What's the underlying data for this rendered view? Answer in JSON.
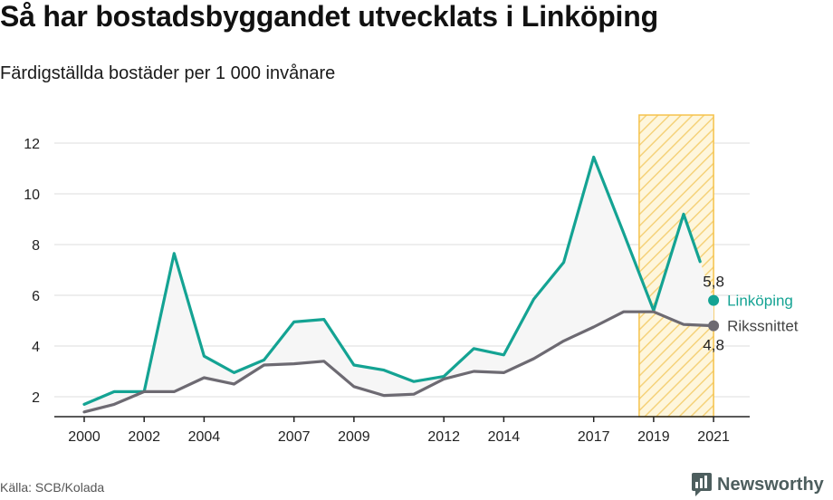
{
  "header": {
    "title": "Så har bostadsbyggandet utvecklats i Linköping",
    "subtitle": "Färdigställda bostäder per 1 000 invånare"
  },
  "footer": {
    "source": "Källa: SCB/Kolada",
    "brand": "Newsworthy"
  },
  "colors": {
    "linkoping": "#14a393",
    "riket": "#6d6a72",
    "band_fill": "#fde7b0",
    "band_stroke": "#f5c24c",
    "grid": "#dddddd",
    "area": "#f6f6f6",
    "brand": "#4d5e5e"
  },
  "chart_data": {
    "type": "line",
    "x": [
      2000,
      2001,
      2002,
      2003,
      2004,
      2005,
      2006,
      2007,
      2008,
      2009,
      2010,
      2011,
      2012,
      2013,
      2014,
      2015,
      2016,
      2017,
      2018,
      2019,
      2020,
      2021
    ],
    "series": [
      {
        "name": "Linköping",
        "values": [
          1.7,
          2.2,
          2.2,
          7.65,
          3.6,
          2.95,
          3.45,
          4.95,
          5.05,
          3.25,
          3.05,
          2.6,
          2.8,
          3.9,
          3.65,
          5.85,
          7.3,
          11.45,
          8.45,
          5.4,
          9.2,
          5.8
        ]
      },
      {
        "name": "Rikssnittet",
        "values": [
          1.4,
          1.7,
          2.2,
          2.2,
          2.75,
          2.5,
          3.25,
          3.3,
          3.4,
          2.4,
          2.05,
          2.1,
          2.7,
          3.0,
          2.95,
          3.5,
          4.2,
          4.75,
          5.35,
          5.35,
          4.85,
          4.8
        ]
      }
    ],
    "end_labels": [
      "5,8",
      "4,8"
    ],
    "highlight_range": [
      2019,
      2021
    ],
    "xticks": [
      "2000",
      "2002",
      "2004",
      "2007",
      "2009",
      "2012",
      "2014",
      "2017",
      "2019",
      "2021"
    ],
    "xtick_values": [
      2000,
      2002,
      2004,
      2007,
      2009,
      2012,
      2014,
      2017,
      2019,
      2021
    ],
    "yticks": [
      "2",
      "4",
      "6",
      "8",
      "10",
      "12"
    ],
    "ytick_values": [
      2,
      4,
      6,
      8,
      10,
      12
    ],
    "ylim": [
      1.2,
      13.2
    ],
    "xlim": [
      1999,
      2022
    ],
    "grid": true
  }
}
